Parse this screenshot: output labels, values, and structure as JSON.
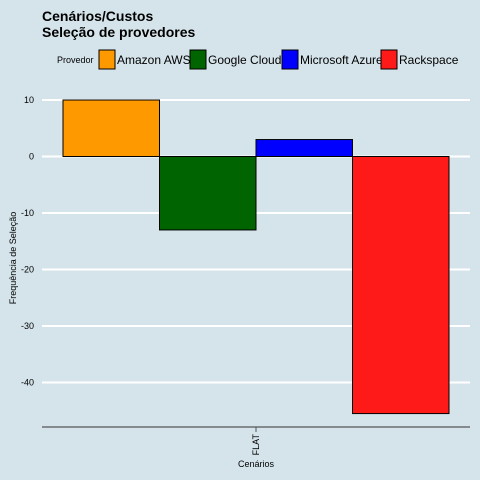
{
  "chart_data": {
    "type": "bar",
    "title": "Cenários/Custos",
    "subtitle": "Seleção de provedores",
    "xlabel": "Cenários",
    "ylabel": "Frequência de Seleção",
    "categories": [
      "FLAT"
    ],
    "legend_title": "Provedor",
    "legend_position": "top",
    "grid": true,
    "ylim": [
      -48,
      12
    ],
    "yticks": [
      10,
      0,
      -10,
      -20,
      -30,
      -40
    ],
    "series": [
      {
        "name": "Amazon AWS",
        "color": "#ff9900",
        "values": [
          10
        ]
      },
      {
        "name": "Google Cloud",
        "color": "#006400",
        "values": [
          -13
        ]
      },
      {
        "name": "Microsoft Azure",
        "color": "#0000ff",
        "values": [
          3
        ]
      },
      {
        "name": "Rackspace",
        "color": "#ff1a1a",
        "values": [
          -45.5
        ]
      }
    ]
  }
}
